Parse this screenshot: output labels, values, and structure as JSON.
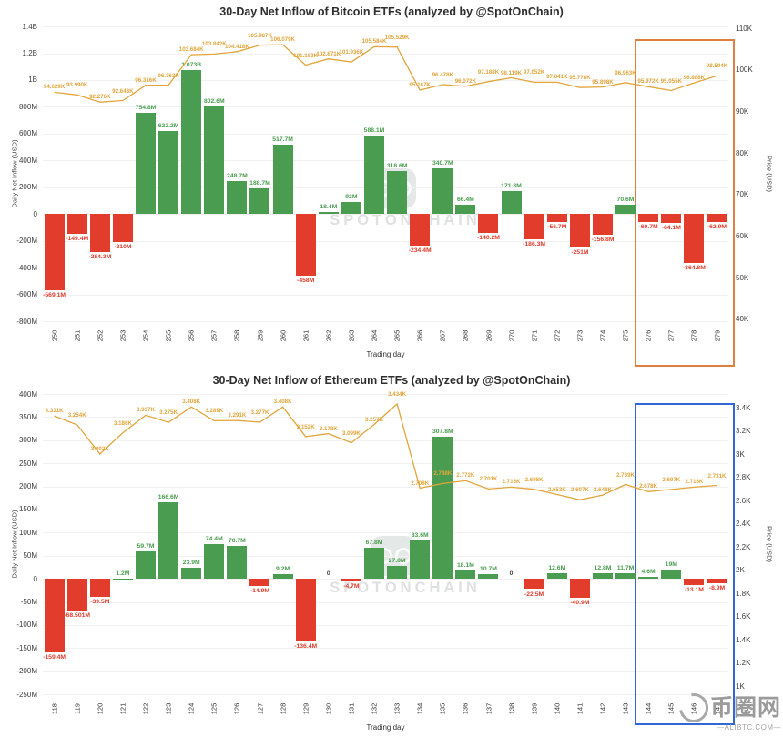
{
  "watermark": {
    "brand": "SPOTONCHAIN"
  },
  "corner_watermark": {
    "text": "币圈网",
    "sub": "—ALIBTC.COM—"
  },
  "colors": {
    "bar_positive": "#4a9d50",
    "bar_negative": "#e23c2d",
    "price_line": "#e2a53c",
    "zero_label": "#444444",
    "highlight_btc": "#e08040",
    "highlight_eth": "#3069d6"
  },
  "chart_data": [
    {
      "type": "bar+line",
      "title": "30-Day Net Inflow of Bitcoin ETFs (analyzed by @SpotOnChain)",
      "xlabel": "Trading day",
      "ylabel_left": "Daily Net Inflow (USD)",
      "ylabel_right": "Price (USD)",
      "x": [
        250,
        251,
        252,
        253,
        254,
        255,
        256,
        257,
        258,
        259,
        260,
        261,
        262,
        263,
        264,
        265,
        266,
        267,
        268,
        269,
        270,
        271,
        272,
        273,
        274,
        275,
        276,
        277,
        278,
        279
      ],
      "bar_values_musd": [
        -569.1,
        -149.4,
        -284.3,
        -210,
        754.8,
        622.2,
        1073,
        802.6,
        248.7,
        188.7,
        517.7,
        -458,
        18.4,
        92,
        588.1,
        318.6,
        -234.4,
        340.7,
        66.4,
        -140.2,
        171.3,
        -186.3,
        -56.7,
        -251,
        -156.8,
        70.6,
        -60.7,
        -64.1,
        -364.8,
        -62.9
      ],
      "bar_labels": [
        "-569.1M",
        "-149.4M",
        "-284.3M",
        "-210M",
        "754.8M",
        "622.2M",
        "1.073B",
        "802.6M",
        "248.7M",
        "188.7M",
        "517.7M",
        "-458M",
        "18.4M",
        "92M",
        "588.1M",
        "318.6M",
        "-234.4M",
        "340.7M",
        "66.4M",
        "-140.2M",
        "171.3M",
        "-186.3M",
        "-56.7M",
        "-251M",
        "-156.8M",
        "70.6M",
        "-60.7M",
        "-64.1M",
        "-364.8M",
        "-62.9M"
      ],
      "price_values_kusd": [
        94.629,
        93.99,
        92.276,
        92.643,
        96.316,
        96.363,
        103.684,
        103.842,
        104.418,
        105.987,
        106.079,
        101.183,
        102.671,
        101.936,
        105.584,
        105.529,
        95.167,
        96.478,
        96.072,
        97.188,
        98.119,
        97.052,
        97.041,
        95.778,
        95.898,
        96.963,
        95.972,
        95.055,
        96.888,
        98.594
      ],
      "price_labels": [
        "94.629K",
        "93.990K",
        "92.276K",
        "92.643K",
        "96.316K",
        "96.363K",
        "103.684K",
        "103.842K",
        "104.418K",
        "105.987K",
        "106.079K",
        "101.183K",
        "102.671K",
        "101.936K",
        "105.584K",
        "105.529K",
        "95.167K",
        "96.478K",
        "96.072K",
        "97.188K",
        "98.119K",
        "97.052K",
        "97.041K",
        "95.778K",
        "95.898K",
        "96.963K",
        "95.972K",
        "95.055K",
        "96.888K",
        "98.594K"
      ],
      "ylim_left": [
        -800,
        1400
      ],
      "yticks_left": [
        {
          "value": 1400,
          "label": "1.4B"
        },
        {
          "value": 1200,
          "label": "1.2B"
        },
        {
          "value": 1000,
          "label": "1B"
        },
        {
          "value": 800,
          "label": "800M"
        },
        {
          "value": 600,
          "label": "600M"
        },
        {
          "value": 400,
          "label": "400M"
        },
        {
          "value": 200,
          "label": "200M"
        },
        {
          "value": 0,
          "label": "0"
        },
        {
          "value": -200,
          "label": "-200M"
        },
        {
          "value": -400,
          "label": "-400M"
        },
        {
          "value": -600,
          "label": "-600M"
        },
        {
          "value": -800,
          "label": "-800M"
        }
      ],
      "ylim_right": [
        39.5,
        110.5
      ],
      "yticks_right": [
        {
          "value": 110,
          "label": "110K"
        },
        {
          "value": 100,
          "label": "100K"
        },
        {
          "value": 90,
          "label": "90K"
        },
        {
          "value": 80,
          "label": "80K"
        },
        {
          "value": 70,
          "label": "70K"
        },
        {
          "value": 60,
          "label": "60K"
        },
        {
          "value": 50,
          "label": "50K"
        },
        {
          "value": 40,
          "label": "40K"
        }
      ],
      "highlight": {
        "from_day": 276,
        "to_day": 279,
        "color_key": "highlight_btc"
      }
    },
    {
      "type": "bar+line",
      "title": "30-Day Net Inflow of Ethereum ETFs (analyzed by @SpotOnChain)",
      "xlabel": "Trading day",
      "ylabel_left": "Daily Net Inflow (USD)",
      "ylabel_right": "Price (USD)",
      "x": [
        118,
        119,
        120,
        121,
        122,
        123,
        124,
        125,
        126,
        127,
        128,
        129,
        130,
        131,
        132,
        133,
        134,
        135,
        136,
        137,
        138,
        139,
        140,
        141,
        142,
        143,
        144,
        145,
        146,
        147
      ],
      "bar_values_musd": [
        -159.4,
        -68.501,
        -39.5,
        1.2,
        59.7,
        166.6,
        23.9,
        74.4,
        70.7,
        -14.9,
        9.2,
        -136.4,
        0,
        -4.7,
        67.8,
        27.8,
        83.6,
        307.8,
        18.1,
        10.7,
        0,
        -22.5,
        12.6,
        -40.9,
        12.8,
        11.7,
        4.6,
        19,
        -13.1,
        -8.9
      ],
      "bar_labels": [
        "-159.4M",
        "-68.501M",
        "-39.5M",
        "1.2M",
        "59.7M",
        "166.6M",
        "23.9M",
        "74.4M",
        "70.7M",
        "-14.9M",
        "9.2M",
        "-136.4M",
        "0",
        "-4.7M",
        "67.8M",
        "27.8M",
        "83.6M",
        "307.8M",
        "18.1M",
        "10.7M",
        "0",
        "-22.5M",
        "12.6M",
        "-40.9M",
        "12.8M",
        "11.7M",
        "4.6M",
        "19M",
        "-13.1M",
        "-8.9M"
      ],
      "price_values_kusd": [
        3.331,
        3.254,
        3.002,
        3.186,
        3.337,
        3.275,
        3.408,
        3.289,
        3.291,
        3.277,
        3.408,
        3.152,
        3.178,
        3.099,
        3.257,
        3.434,
        2.708,
        2.748,
        2.772,
        2.701,
        2.716,
        2.698,
        2.653,
        2.607,
        2.648,
        2.739,
        2.678,
        2.697,
        2.716,
        2.731
      ],
      "price_labels": [
        "3.331K",
        "3.254K",
        "3.002K",
        "3.186K",
        "3.337K",
        "3.275K",
        "3.408K",
        "3.289K",
        "3.291K",
        "3.277K",
        "3.408K",
        "3.152K",
        "3.178K",
        "3.099K",
        "3.257K",
        "3.434K",
        "2.708K",
        "2.748K",
        "2.772K",
        "2.701K",
        "2.716K",
        "2.698K",
        "2.653K",
        "2.607K",
        "2.648K",
        "2.739K",
        "2.678K",
        "2.697K",
        "2.716K",
        "2.731K"
      ],
      "ylim_left": [
        -250,
        400
      ],
      "yticks_left": [
        {
          "value": 400,
          "label": "400M"
        },
        {
          "value": 350,
          "label": "350M"
        },
        {
          "value": 300,
          "label": "300M"
        },
        {
          "value": 250,
          "label": "250M"
        },
        {
          "value": 200,
          "label": "200M"
        },
        {
          "value": 150,
          "label": "150M"
        },
        {
          "value": 100,
          "label": "100M"
        },
        {
          "value": 50,
          "label": "50M"
        },
        {
          "value": 0,
          "label": "0"
        },
        {
          "value": -50,
          "label": "-50M"
        },
        {
          "value": -100,
          "label": "-100M"
        },
        {
          "value": -150,
          "label": "-150M"
        },
        {
          "value": -200,
          "label": "-200M"
        },
        {
          "value": -250,
          "label": "-250M"
        }
      ],
      "ylim_right": [
        0.93,
        3.52
      ],
      "yticks_right": [
        {
          "value": 3.4,
          "label": "3.4K"
        },
        {
          "value": 3.2,
          "label": "3.2K"
        },
        {
          "value": 3.0,
          "label": "3K"
        },
        {
          "value": 2.8,
          "label": "2.8K"
        },
        {
          "value": 2.6,
          "label": "2.6K"
        },
        {
          "value": 2.4,
          "label": "2.4K"
        },
        {
          "value": 2.2,
          "label": "2.2K"
        },
        {
          "value": 2.0,
          "label": "2K"
        },
        {
          "value": 1.8,
          "label": "1.8K"
        },
        {
          "value": 1.6,
          "label": "1.6K"
        },
        {
          "value": 1.4,
          "label": "1.4K"
        },
        {
          "value": 1.2,
          "label": "1.2K"
        },
        {
          "value": 1.0,
          "label": "1K"
        }
      ],
      "highlight": {
        "from_day": 144,
        "to_day": 147,
        "color_key": "highlight_eth"
      }
    }
  ]
}
